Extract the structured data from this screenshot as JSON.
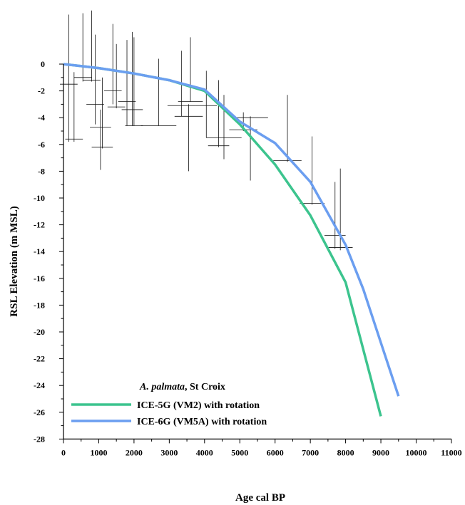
{
  "chart_data": {
    "type": "line",
    "xlabel": "Age cal BP",
    "ylabel": "RSL Elevation (m MSL)",
    "xlim": [
      0,
      11000
    ],
    "ylim": [
      -28,
      0
    ],
    "x_ticks": [
      "0",
      "1000",
      "2000",
      "3000",
      "4000",
      "5000",
      "6000",
      "7000",
      "8000",
      "9000",
      "10000",
      "11000"
    ],
    "y_ticks": [
      "0",
      "-2",
      "-4",
      "-6",
      "-8",
      "-10",
      "-12",
      "-14",
      "-16",
      "-18",
      "-20",
      "-22",
      "-24",
      "-26",
      "-28"
    ],
    "legend": {
      "title_italic": "A. palmata",
      "title_rest": ", St Croix",
      "placement": "bottom-left"
    },
    "series": [
      {
        "name": "ICE-5G (VM2) with rotation",
        "color": "#3cc48e",
        "x": [
          0,
          1000,
          2000,
          3000,
          4000,
          5000,
          6000,
          7000,
          8000,
          9000
        ],
        "y": [
          0,
          -0.3,
          -0.7,
          -1.2,
          -2.0,
          -4.5,
          -7.5,
          -11.3,
          -16.3,
          -26.3
        ]
      },
      {
        "name": "ICE-6G (VM5A) with rotation",
        "color": "#6b9ef0",
        "x": [
          0,
          1000,
          2000,
          3000,
          4000,
          5000,
          6000,
          7000,
          8000,
          8500,
          9000,
          9500
        ],
        "y": [
          0,
          -0.3,
          -0.7,
          -1.2,
          -1.9,
          -4.3,
          -5.9,
          -8.8,
          -13.5,
          -16.8,
          -20.8,
          -24.8
        ]
      }
    ],
    "error_bars": [
      {
        "x": 150,
        "y": -1.5,
        "xerr": 250,
        "ylo": -5.8,
        "yhi": 3.7
      },
      {
        "x": 300,
        "y": -5.6,
        "xerr": 250,
        "ylo": -5.8,
        "yhi": -0.6
      },
      {
        "x": 550,
        "y": -1.0,
        "xerr": 250,
        "ylo": -1.3,
        "yhi": 3.8
      },
      {
        "x": 800,
        "y": -1.2,
        "xerr": 250,
        "ylo": -1.3,
        "yhi": 4.0
      },
      {
        "x": 900,
        "y": -3.0,
        "xerr": 250,
        "ylo": -4.5,
        "yhi": 2.2
      },
      {
        "x": 1050,
        "y": -4.7,
        "xerr": 300,
        "ylo": -7.9,
        "yhi": -3.4
      },
      {
        "x": 1100,
        "y": -6.2,
        "xerr": 300,
        "ylo": -6.3,
        "yhi": -1.0
      },
      {
        "x": 1400,
        "y": -2.0,
        "xerr": 250,
        "ylo": -3.0,
        "yhi": 3.0
      },
      {
        "x": 1500,
        "y": -3.2,
        "xerr": 250,
        "ylo": -3.3,
        "yhi": 1.5
      },
      {
        "x": 1800,
        "y": -2.8,
        "xerr": 250,
        "ylo": -4.6,
        "yhi": 1.8
      },
      {
        "x": 1950,
        "y": -3.4,
        "xerr": 300,
        "ylo": -4.6,
        "yhi": 2.4
      },
      {
        "x": 2000,
        "y": -4.6,
        "xerr": 250,
        "ylo": -4.6,
        "yhi": 2.0
      },
      {
        "x": 2700,
        "y": -4.6,
        "xerr": 500,
        "ylo": -4.6,
        "yhi": 0.4
      },
      {
        "x": 3350,
        "y": -3.1,
        "xerr": 400,
        "ylo": -3.9,
        "yhi": 1.0
      },
      {
        "x": 3550,
        "y": -3.9,
        "xerr": 400,
        "ylo": -8.0,
        "yhi": -3.0
      },
      {
        "x": 3600,
        "y": -2.8,
        "xerr": 350,
        "ylo": -2.8,
        "yhi": 2.0
      },
      {
        "x": 4050,
        "y": -3.1,
        "xerr": 300,
        "ylo": -5.5,
        "yhi": -0.5
      },
      {
        "x": 4400,
        "y": -6.1,
        "xerr": 300,
        "ylo": -6.2,
        "yhi": -1.2
      },
      {
        "x": 4550,
        "y": -5.5,
        "xerr": 500,
        "ylo": -7.1,
        "yhi": -2.3
      },
      {
        "x": 5100,
        "y": -4.9,
        "xerr": 400,
        "ylo": -5.0,
        "yhi": -3.6
      },
      {
        "x": 5300,
        "y": -4.0,
        "xerr": 500,
        "ylo": -8.7,
        "yhi": -3.9
      },
      {
        "x": 6350,
        "y": -7.2,
        "xerr": 400,
        "ylo": -7.3,
        "yhi": -2.3
      },
      {
        "x": 7050,
        "y": -10.4,
        "xerr": 350,
        "ylo": -10.5,
        "yhi": -5.4
      },
      {
        "x": 7700,
        "y": -12.8,
        "xerr": 300,
        "ylo": -13.8,
        "yhi": -8.8
      },
      {
        "x": 7850,
        "y": -13.7,
        "xerr": 350,
        "ylo": -13.9,
        "yhi": -7.8
      }
    ]
  }
}
